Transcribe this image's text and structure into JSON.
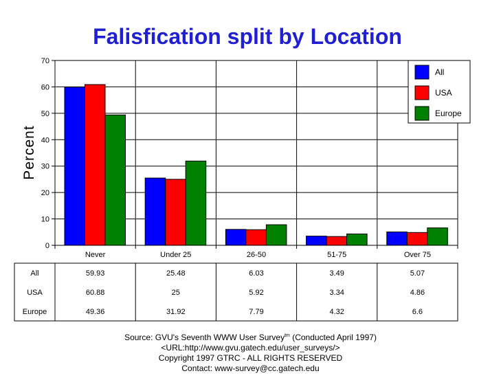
{
  "chart_data": {
    "type": "bar",
    "title": "Falisfication split by Location",
    "ylabel": "Percent",
    "xlabel": "",
    "ylim": [
      0,
      70
    ],
    "yticks": [
      0,
      10,
      20,
      30,
      40,
      50,
      60,
      70
    ],
    "grid": true,
    "legend_position": "top-right",
    "categories": [
      "Never",
      "Under 25",
      "26-50",
      "51-75",
      "Over 75"
    ],
    "series": [
      {
        "name": "All",
        "color": "#0000ff",
        "values": [
          59.93,
          25.48,
          6.03,
          3.49,
          5.07
        ]
      },
      {
        "name": "USA",
        "color": "#ff0000",
        "values": [
          60.88,
          25,
          5.92,
          3.34,
          4.86
        ]
      },
      {
        "name": "Europe",
        "color": "#008000",
        "values": [
          49.36,
          31.92,
          7.79,
          4.32,
          6.6
        ]
      }
    ],
    "table": {
      "rows": [
        {
          "label": "All",
          "cells": [
            "59.93",
            "25.48",
            "6.03",
            "3.49",
            "5.07"
          ]
        },
        {
          "label": "USA",
          "cells": [
            "60.88",
            "25",
            "5.92",
            "3.34",
            "4.86"
          ]
        },
        {
          "label": "Europe",
          "cells": [
            "49.36",
            "31.92",
            "7.79",
            "4.32",
            "6.6"
          ]
        }
      ]
    }
  },
  "footer": {
    "source_prefix": "Source: GVU's Seventh WWW User Survey",
    "source_sup": "tm",
    "source_suffix": " (Conducted April 1997)",
    "url": "<URL:http://www.gvu.gatech.edu/user_surveys/>",
    "copyright": "Copyright 1997 GTRC - ALL RIGHTS RESERVED",
    "contact": "Contact: www-survey@cc.gatech.edu"
  }
}
